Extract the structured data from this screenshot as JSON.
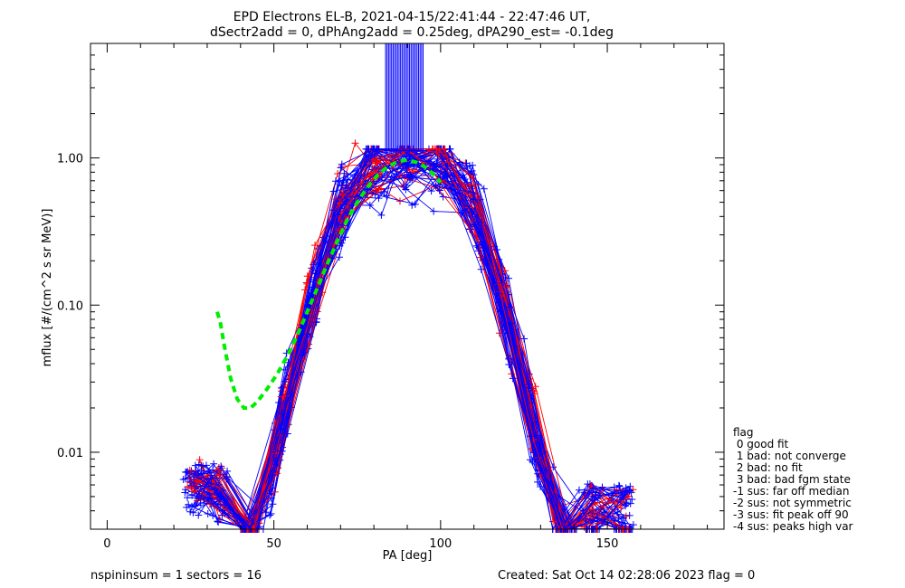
{
  "chart_data": {
    "type": "scatter",
    "title": "EPD Electrons EL-B, 2021-04-15/22:41:44 - 22:47:46 UT,",
    "subtitle": "dSectr2add = 0, dPhAng2add = 0.25deg, dPA290_est=  -0.1deg",
    "xlabel": "PA [deg]",
    "ylabel": "mflux [#/(cm^2 s sr MeV)]",
    "xlim": [
      -5,
      185
    ],
    "ylim": [
      0.003,
      6
    ],
    "yscale": "log",
    "xticks": [
      0,
      50,
      100,
      150
    ],
    "xtick_labels": [
      "0",
      "50",
      "100",
      "150"
    ],
    "yticks": [
      0.01,
      0.1,
      1.0
    ],
    "ytick_labels": [
      "0.01",
      "0.10",
      "1.00"
    ],
    "grid": false,
    "legend_position": "right",
    "colors": {
      "sus": "#ff0000",
      "good": "#0000ff",
      "fit": "#00ee00"
    },
    "fit_curve": {
      "x": [
        33,
        34,
        35,
        37,
        39,
        41,
        43,
        45,
        48,
        51,
        54,
        57,
        60,
        63,
        66,
        69,
        72,
        75,
        78,
        81,
        84,
        87,
        90,
        93,
        96,
        99,
        100
      ],
      "y": [
        0.09,
        0.075,
        0.055,
        0.032,
        0.023,
        0.02,
        0.02,
        0.022,
        0.027,
        0.034,
        0.045,
        0.062,
        0.09,
        0.13,
        0.19,
        0.27,
        0.38,
        0.5,
        0.63,
        0.76,
        0.87,
        0.94,
        0.97,
        0.93,
        0.85,
        0.73,
        0.68
      ]
    },
    "legend": {
      "title": "flag",
      "entries": [
        " 0 good fit",
        " 1 bad: not converge",
        " 2 bad: no fit",
        " 3 bad: bad fgm state",
        "-1 sus: far off median",
        "-2 sus: not symmetric",
        "-3 sus: fit peak off 90",
        "-4 sus: peaks high var"
      ]
    }
  },
  "footer": {
    "left": "nspininsum =  1  sectors = 16",
    "right": "Created: Sat Oct 14 02:28:06 2023   flag = 0"
  }
}
